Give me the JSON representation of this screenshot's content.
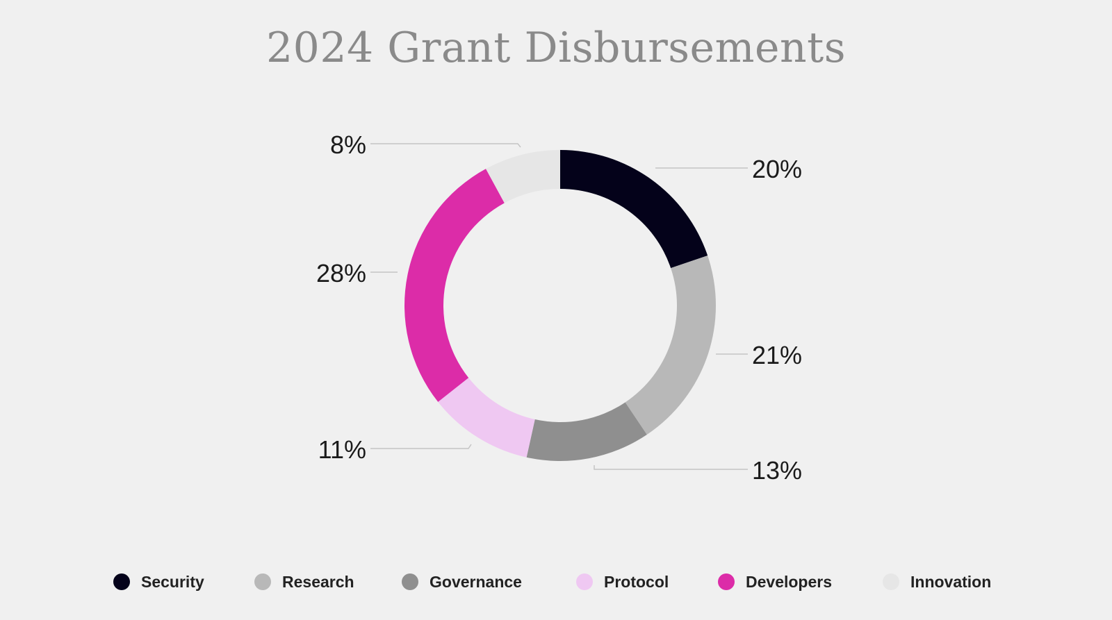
{
  "chart_data": {
    "type": "pie",
    "title": "2024 Grant Disbursements",
    "style": "donut",
    "legend_position": "bottom",
    "series": [
      {
        "name": "Security",
        "value": 20,
        "label": "20%",
        "color": "#04021a"
      },
      {
        "name": "Research",
        "value": 21,
        "label": "21%",
        "color": "#b8b8b8"
      },
      {
        "name": "Governance",
        "value": 13,
        "label": "13%",
        "color": "#8f8f8f"
      },
      {
        "name": "Protocol",
        "value": 11,
        "label": "11%",
        "color": "#efc8f2"
      },
      {
        "name": "Developers",
        "value": 28,
        "label": "28%",
        "color": "#dc2ca8"
      },
      {
        "name": "Innovation",
        "value": 8,
        "label": "8%",
        "color": "#e6e6e6"
      }
    ]
  }
}
